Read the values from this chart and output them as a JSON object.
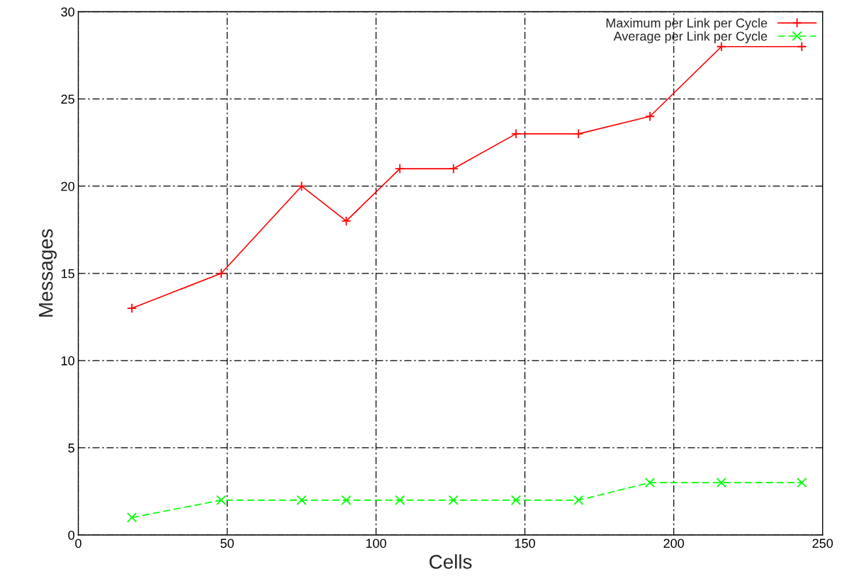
{
  "chart_data": {
    "type": "line",
    "xlabel": "Cells",
    "ylabel": "Messages",
    "xlim": [
      0,
      250
    ],
    "ylim": [
      0,
      30
    ],
    "xticks": [
      0,
      50,
      100,
      150,
      200,
      250
    ],
    "yticks": [
      0,
      5,
      10,
      15,
      20,
      25,
      30
    ],
    "grid": true,
    "legend": "top right",
    "series": [
      {
        "name": "Maximum per Link per Cycle",
        "color": "#ff0000",
        "marker": "plus",
        "line_style": "solid",
        "x": [
          18,
          48,
          75,
          90,
          108,
          126,
          147,
          168,
          192,
          216,
          243
        ],
        "values": [
          13,
          15,
          20,
          18,
          21,
          21,
          23,
          23,
          24,
          28,
          28
        ]
      },
      {
        "name": "Average per Link per Cycle",
        "color": "#00ff00",
        "marker": "cross",
        "line_style": "dashed",
        "x": [
          18,
          48,
          75,
          90,
          108,
          126,
          147,
          168,
          192,
          216,
          243
        ],
        "values": [
          1,
          2,
          2,
          2,
          2,
          2,
          2,
          2,
          3,
          3,
          3
        ]
      }
    ]
  }
}
